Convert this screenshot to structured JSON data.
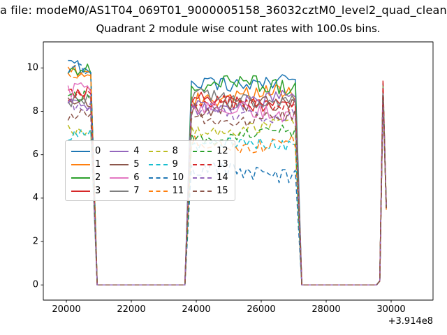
{
  "figure": {
    "suptitle": "a file: modeM0/AS1T04_069T01_9000005158_36032cztM0_level2_quad_clean",
    "title": "Quadrant 2 module wise count rates with 100.0s bins."
  },
  "chart_data": {
    "type": "line",
    "title": "Quadrant 2 module wise count rates with 100.0s bins.",
    "xlabel": "",
    "ylabel": "",
    "x_offset_label": "+3.914e8",
    "x_ticks": [
      20000,
      22000,
      24000,
      26000,
      28000,
      30000
    ],
    "y_ticks": [
      0,
      2,
      4,
      6,
      8,
      10
    ],
    "xlim": [
      19290,
      31290
    ],
    "ylim": [
      -0.7,
      11.2
    ],
    "bin_seconds": 100,
    "x_start": 20050,
    "x_end": 29850,
    "spike_level": 9.0,
    "envelope": [
      [
        20050,
        1
      ],
      [
        20750,
        1
      ],
      [
        20950,
        0
      ],
      [
        23650,
        0
      ],
      [
        23850,
        1
      ],
      [
        27050,
        1
      ],
      [
        27250,
        0
      ],
      [
        29550,
        0
      ],
      [
        29650,
        0.02
      ],
      [
        29750,
        1
      ],
      [
        29850,
        0.4
      ]
    ],
    "series": [
      {
        "name": "0",
        "color": "#1f77b4",
        "linestyle": "solid",
        "level_seg1": 10.2,
        "level_seg2": 9.4,
        "noise": 0.35
      },
      {
        "name": "1",
        "color": "#ff7f0e",
        "linestyle": "solid",
        "level_seg1": 9.9,
        "level_seg2": 8.7,
        "noise": 0.35
      },
      {
        "name": "2",
        "color": "#2ca02c",
        "linestyle": "solid",
        "level_seg1": 9.8,
        "level_seg2": 9.2,
        "noise": 0.35
      },
      {
        "name": "3",
        "color": "#d62728",
        "linestyle": "solid",
        "level_seg1": 8.9,
        "level_seg2": 8.4,
        "noise": 0.35
      },
      {
        "name": "4",
        "color": "#9467bd",
        "linestyle": "solid",
        "level_seg1": 8.6,
        "level_seg2": 8.5,
        "noise": 0.35
      },
      {
        "name": "5",
        "color": "#8c564b",
        "linestyle": "solid",
        "level_seg1": 8.4,
        "level_seg2": 8.2,
        "noise": 0.35
      },
      {
        "name": "6",
        "color": "#e377c2",
        "linestyle": "solid",
        "level_seg1": 8.8,
        "level_seg2": 8.0,
        "noise": 0.35
      },
      {
        "name": "7",
        "color": "#7f7f7f",
        "linestyle": "solid",
        "level_seg1": 8.5,
        "level_seg2": 8.6,
        "noise": 0.35
      },
      {
        "name": "8",
        "color": "#bcbd22",
        "linestyle": "dashed",
        "level_seg1": 7.3,
        "level_seg2": 7.2,
        "noise": 0.3
      },
      {
        "name": "9",
        "color": "#17becf",
        "linestyle": "dashed",
        "level_seg1": 6.9,
        "level_seg2": 6.4,
        "noise": 0.3
      },
      {
        "name": "10",
        "color": "#1f77b4",
        "linestyle": "dashed",
        "level_seg1": 9.8,
        "level_seg2": 5.2,
        "noise": 0.32
      },
      {
        "name": "11",
        "color": "#ff7f0e",
        "linestyle": "dashed",
        "level_seg1": 9.9,
        "level_seg2": 6.5,
        "noise": 0.3
      },
      {
        "name": "12",
        "color": "#2ca02c",
        "linestyle": "dashed",
        "level_seg1": 8.8,
        "level_seg2": 6.9,
        "noise": 0.3
      },
      {
        "name": "13",
        "color": "#d62728",
        "linestyle": "dashed",
        "level_seg1": 8.7,
        "level_seg2": 8.3,
        "noise": 0.3
      },
      {
        "name": "14",
        "color": "#9467bd",
        "linestyle": "dashed",
        "level_seg1": 8.2,
        "level_seg2": 7.9,
        "noise": 0.3
      },
      {
        "name": "15",
        "color": "#8c564b",
        "linestyle": "dashed",
        "level_seg1": 8.0,
        "level_seg2": 7.7,
        "noise": 0.3
      }
    ],
    "legend": {
      "columns": 4,
      "position": "center left"
    },
    "grid": false
  }
}
